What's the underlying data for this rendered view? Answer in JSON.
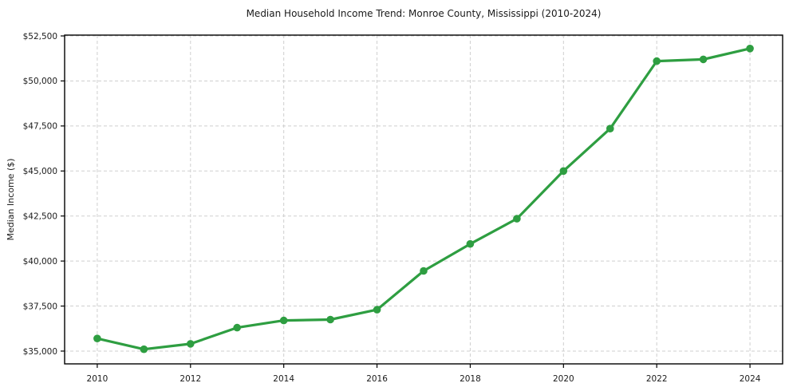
{
  "title": "Median Household Income Trend: Monroe County, Mississippi (2010-2024)",
  "colors": {
    "line": "#2e9e41",
    "marker": "#2e9e41",
    "grid": "#cfcfcf",
    "frame": "#000000",
    "background": "#ffffff",
    "text": "#1a1a1a"
  },
  "chart_data": {
    "type": "line",
    "title": "Median Household Income Trend: Monroe County, Mississippi (2010-2024)",
    "xlabel": "",
    "ylabel": "Median Income ($)",
    "x": [
      2010,
      2011,
      2012,
      2013,
      2014,
      2015,
      2016,
      2017,
      2018,
      2019,
      2020,
      2021,
      2022,
      2023,
      2024
    ],
    "series": [
      {
        "name": "Median Household Income",
        "values": [
          35700,
          35100,
          35400,
          36300,
          36700,
          36750,
          37300,
          39450,
          40950,
          42350,
          45000,
          47350,
          51100,
          51200,
          51800
        ]
      }
    ],
    "xticks": [
      2010,
      2012,
      2014,
      2016,
      2018,
      2020,
      2022,
      2024
    ],
    "xtick_labels": [
      "2010",
      "2012",
      "2014",
      "2016",
      "2018",
      "2020",
      "2022",
      "2024"
    ],
    "yticks": [
      35000,
      37500,
      40000,
      42500,
      45000,
      47500,
      50000,
      52500
    ],
    "ytick_labels": [
      "$35,000",
      "$37,500",
      "$40,000",
      "$42,500",
      "$45,000",
      "$47,500",
      "$50,000",
      "$52,500"
    ],
    "xlim": [
      2009.3,
      2024.7
    ],
    "ylim": [
      34290,
      52545
    ],
    "grid": true,
    "grid_style": "dashed",
    "legend": "none"
  }
}
